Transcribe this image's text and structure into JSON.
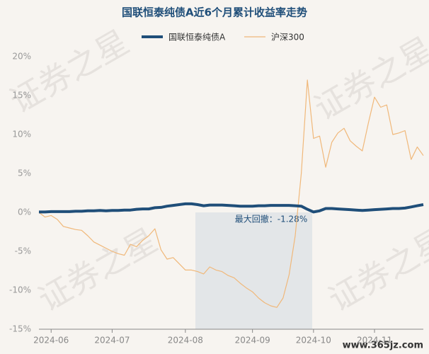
{
  "chart_data": {
    "type": "line",
    "title": "国联恒泰纯债A近6个月累计收益率走势",
    "annotation": "最大回撤：-1.28%",
    "watermark": "证券之星",
    "site_watermark": "www.365jz.com",
    "categories": [
      null,
      null,
      "2024-06",
      null,
      null,
      null,
      null,
      null,
      null,
      null,
      null,
      null,
      "2024-07",
      null,
      null,
      null,
      null,
      null,
      null,
      null,
      null,
      null,
      null,
      null,
      "2024-08",
      null,
      null,
      null,
      null,
      null,
      null,
      null,
      null,
      null,
      null,
      "2024-09",
      null,
      null,
      null,
      null,
      null,
      null,
      null,
      null,
      null,
      "2024-10",
      null,
      null,
      null,
      null,
      null,
      null,
      null,
      null,
      null,
      "2024-11",
      null,
      null,
      null,
      null,
      null,
      null,
      null,
      null
    ],
    "series": [
      {
        "name": "国联恒泰纯债A",
        "color": "#1f4e79",
        "width": 4,
        "values": [
          0.05,
          0.05,
          0.1,
          0.1,
          0.1,
          0.1,
          0.15,
          0.15,
          0.2,
          0.2,
          0.25,
          0.2,
          0.25,
          0.25,
          0.3,
          0.3,
          0.4,
          0.45,
          0.45,
          0.6,
          0.65,
          0.8,
          0.9,
          1.0,
          1.1,
          1.1,
          1.0,
          0.85,
          0.95,
          0.95,
          0.95,
          0.9,
          0.85,
          0.8,
          0.8,
          0.8,
          0.85,
          0.85,
          0.9,
          0.9,
          0.9,
          0.9,
          0.85,
          0.8,
          0.4,
          0.05,
          0.2,
          0.5,
          0.5,
          0.45,
          0.4,
          0.35,
          0.3,
          0.25,
          0.3,
          0.35,
          0.4,
          0.45,
          0.5,
          0.5,
          0.55,
          0.7,
          0.85,
          1.0
        ]
      },
      {
        "name": "沪深300",
        "color": "#f0b87a",
        "width": 1.2,
        "values": [
          0,
          -0.6,
          -0.4,
          -0.9,
          -1.8,
          -2.0,
          -2.2,
          -2.3,
          -3.0,
          -3.8,
          -4.2,
          -4.6,
          -5.0,
          -5.3,
          -5.5,
          -4.1,
          -4.4,
          -3.6,
          -3.0,
          -2.1,
          -4.8,
          -6.0,
          -5.8,
          -6.6,
          -7.4,
          -7.4,
          -7.6,
          -7.9,
          -7.0,
          -7.4,
          -7.6,
          -8.1,
          -8.4,
          -9.1,
          -9.7,
          -10.2,
          -11.0,
          -11.6,
          -12.0,
          -12.2,
          -11.0,
          -8.0,
          -3.0,
          5.0,
          17.0,
          9.5,
          9.8,
          5.8,
          9.0,
          10.2,
          10.8,
          9.2,
          8.5,
          7.9,
          11.5,
          14.8,
          13.5,
          13.8,
          10.0,
          10.2,
          10.5,
          6.8,
          8.4,
          7.3
        ]
      }
    ],
    "ylim": [
      -15,
      20
    ],
    "yticks": [
      {
        "value": -15,
        "label": "-15%"
      },
      {
        "value": -10,
        "label": "-10%"
      },
      {
        "value": -5,
        "label": "-5%"
      },
      {
        "value": 0,
        "label": "0%"
      },
      {
        "value": 5,
        "label": "5%"
      },
      {
        "value": 10,
        "label": "10%"
      },
      {
        "value": 15,
        "label": "15%"
      },
      {
        "value": 20,
        "label": "20%"
      }
    ],
    "grid": false
  }
}
